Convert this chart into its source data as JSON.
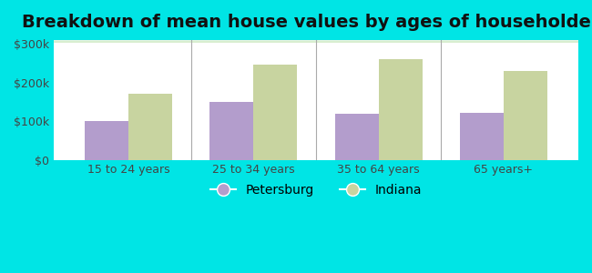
{
  "title": "Breakdown of mean house values by ages of householders",
  "categories": [
    "15 to 24 years",
    "25 to 34 years",
    "35 to 64 years",
    "65 years+"
  ],
  "petersburg_values": [
    100000,
    150000,
    120000,
    122000
  ],
  "indiana_values": [
    170000,
    245000,
    260000,
    230000
  ],
  "petersburg_color": "#b39dcc",
  "indiana_color": "#c8d4a0",
  "background_color": "#00e5e5",
  "ylabel_ticks": [
    0,
    100000,
    200000,
    300000
  ],
  "ylabel_labels": [
    "$0",
    "$100k",
    "$200k",
    "$300k"
  ],
  "ylim": [
    0,
    310000
  ],
  "bar_width": 0.35,
  "title_fontsize": 14,
  "tick_fontsize": 9,
  "legend_fontsize": 10
}
